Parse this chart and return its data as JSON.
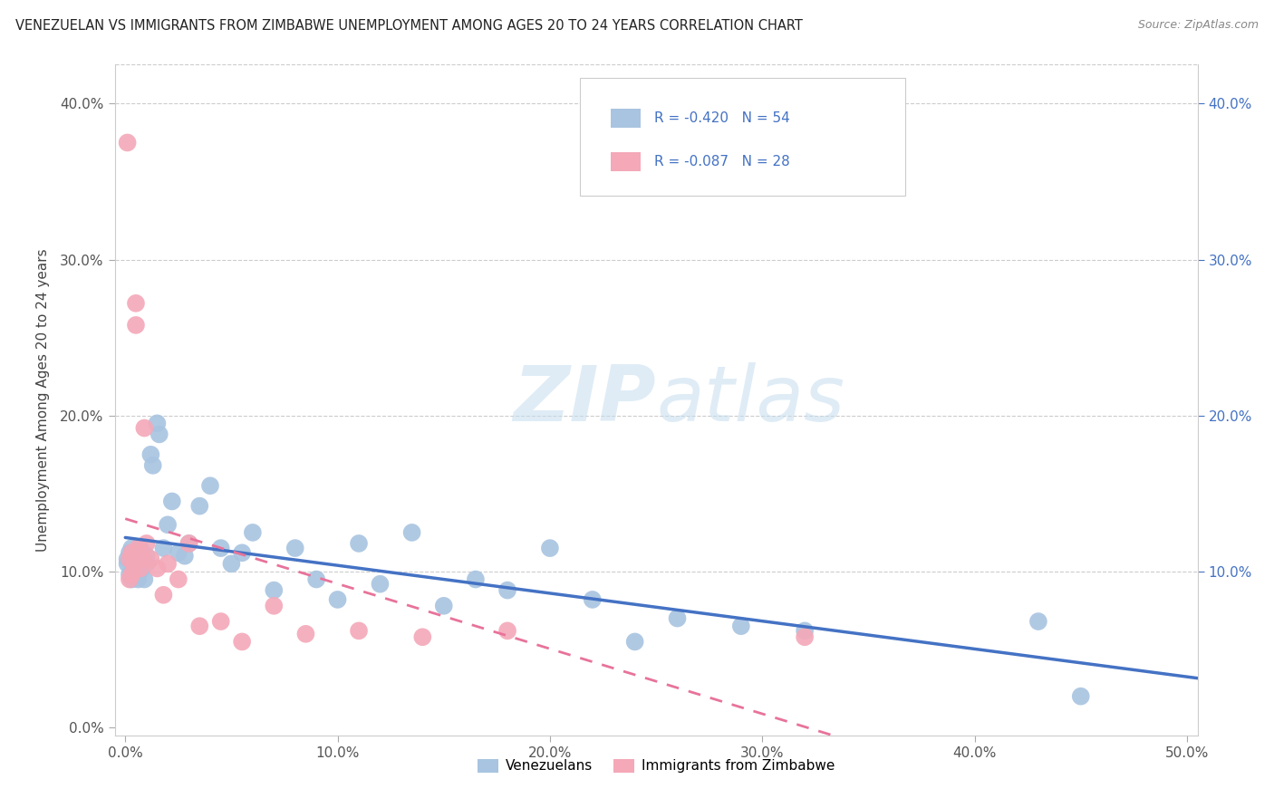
{
  "title": "VENEZUELAN VS IMMIGRANTS FROM ZIMBABWE UNEMPLOYMENT AMONG AGES 20 TO 24 YEARS CORRELATION CHART",
  "source": "Source: ZipAtlas.com",
  "ylabel": "Unemployment Among Ages 20 to 24 years",
  "xlim": [
    -0.005,
    0.505
  ],
  "ylim": [
    -0.005,
    0.425
  ],
  "xticks": [
    0.0,
    0.1,
    0.2,
    0.3,
    0.4,
    0.5
  ],
  "yticks": [
    0.0,
    0.1,
    0.2,
    0.3,
    0.4
  ],
  "xticklabels": [
    "0.0%",
    "10.0%",
    "20.0%",
    "30.0%",
    "40.0%",
    "50.0%"
  ],
  "yticklabels": [
    "0.0%",
    "10.0%",
    "20.0%",
    "30.0%",
    "40.0%"
  ],
  "right_yticklabels": [
    "10.0%",
    "20.0%",
    "30.0%",
    "40.0%"
  ],
  "right_yticks": [
    0.1,
    0.2,
    0.3,
    0.4
  ],
  "venezuelan_color": "#a8c4e0",
  "zimbabwe_color": "#f4a8b8",
  "venezuelan_line_color": "#4472c4",
  "zimbabwe_line_color": "#e8739a",
  "venezuelan_R": -0.42,
  "venezuelan_N": 54,
  "zimbabwe_R": -0.087,
  "zimbabwe_N": 28,
  "legend_label_1": "Venezuelans",
  "legend_label_2": "Immigrants from Zimbabwe",
  "watermark_zip": "ZIP",
  "watermark_atlas": "atlas",
  "venezuelan_x": [
    0.001,
    0.001,
    0.002,
    0.002,
    0.003,
    0.003,
    0.003,
    0.004,
    0.004,
    0.004,
    0.005,
    0.005,
    0.006,
    0.006,
    0.007,
    0.007,
    0.008,
    0.009,
    0.01,
    0.01,
    0.012,
    0.013,
    0.015,
    0.016,
    0.018,
    0.02,
    0.022,
    0.025,
    0.028,
    0.03,
    0.035,
    0.04,
    0.045,
    0.05,
    0.055,
    0.06,
    0.07,
    0.08,
    0.09,
    0.1,
    0.11,
    0.12,
    0.135,
    0.15,
    0.165,
    0.18,
    0.2,
    0.22,
    0.24,
    0.26,
    0.29,
    0.32,
    0.43,
    0.45
  ],
  "venezuelan_y": [
    0.108,
    0.105,
    0.112,
    0.098,
    0.115,
    0.108,
    0.095,
    0.112,
    0.105,
    0.098,
    0.11,
    0.102,
    0.108,
    0.095,
    0.115,
    0.1,
    0.108,
    0.095,
    0.11,
    0.105,
    0.175,
    0.168,
    0.195,
    0.188,
    0.115,
    0.13,
    0.145,
    0.112,
    0.11,
    0.118,
    0.142,
    0.155,
    0.115,
    0.105,
    0.112,
    0.125,
    0.088,
    0.115,
    0.095,
    0.082,
    0.118,
    0.092,
    0.125,
    0.078,
    0.095,
    0.088,
    0.115,
    0.082,
    0.055,
    0.07,
    0.065,
    0.062,
    0.068,
    0.02
  ],
  "zimbabwe_x": [
    0.001,
    0.002,
    0.002,
    0.003,
    0.003,
    0.004,
    0.005,
    0.005,
    0.006,
    0.007,
    0.008,
    0.009,
    0.01,
    0.012,
    0.015,
    0.018,
    0.02,
    0.025,
    0.03,
    0.035,
    0.045,
    0.055,
    0.07,
    0.085,
    0.11,
    0.14,
    0.18,
    0.32
  ],
  "zimbabwe_y": [
    0.375,
    0.108,
    0.095,
    0.112,
    0.098,
    0.105,
    0.272,
    0.258,
    0.115,
    0.102,
    0.108,
    0.192,
    0.118,
    0.108,
    0.102,
    0.085,
    0.105,
    0.095,
    0.118,
    0.065,
    0.068,
    0.055,
    0.078,
    0.06,
    0.062,
    0.058,
    0.062,
    0.058
  ],
  "ven_line_x0": 0.0,
  "ven_line_x1": 0.505,
  "ven_line_y0": 0.112,
  "ven_line_y1": 0.018,
  "zim_line_x0": 0.0,
  "zim_line_x1": 0.35,
  "zim_line_y0": 0.114,
  "zim_line_y1": 0.02
}
